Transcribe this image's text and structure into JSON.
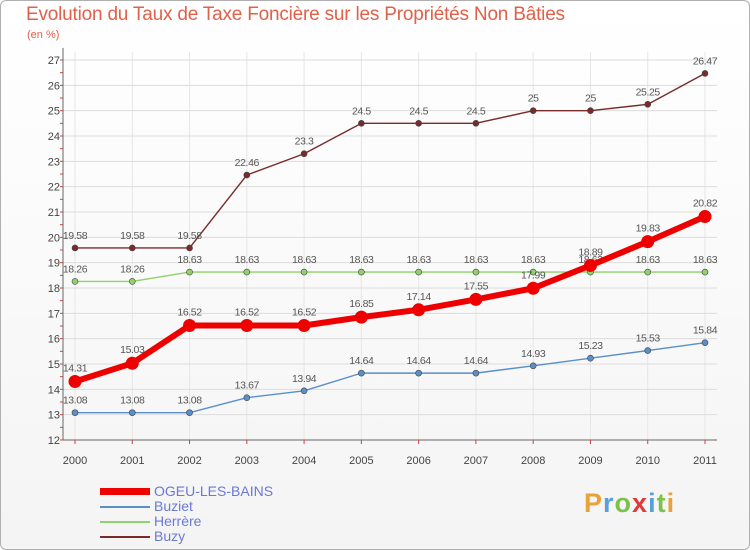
{
  "title": "Evolution du Taux de Taxe Foncière sur les Propriétés Non Bâties",
  "subtitle": "(en %)",
  "logo": {
    "text": "Proxiti",
    "colors": [
      "#e8a23a",
      "#5aa0d8",
      "#7cc24a",
      "#e03a3a",
      "#5aa0d8",
      "#7cc24a",
      "#e8a23a"
    ]
  },
  "chart_data": {
    "type": "line",
    "title": "Evolution du Taux de Taxe Foncière sur les Propriétés Non Bâties",
    "ylabel": "(en %)",
    "xlabel": "",
    "x": [
      2000,
      2001,
      2002,
      2003,
      2004,
      2005,
      2006,
      2007,
      2008,
      2009,
      2010,
      2011
    ],
    "ylim": [
      12,
      27
    ],
    "yticks": [
      12,
      13,
      14,
      15,
      16,
      17,
      18,
      19,
      20,
      21,
      22,
      23,
      24,
      25,
      26,
      27
    ],
    "grid": true,
    "legend_position": "bottom-left",
    "series": [
      {
        "name": "OGEU-LES-BAINS",
        "color": "#ee0000",
        "values": [
          14.31,
          15.03,
          16.52,
          16.52,
          16.52,
          16.85,
          17.14,
          17.55,
          17.99,
          18.89,
          19.83,
          20.82
        ]
      },
      {
        "name": "Buziet",
        "color": "#5a8fc8",
        "values": [
          13.08,
          13.08,
          13.08,
          13.67,
          13.94,
          14.64,
          14.64,
          14.64,
          14.93,
          15.23,
          15.53,
          15.84
        ]
      },
      {
        "name": "Herrère",
        "color": "#8fd16a",
        "values": [
          18.26,
          18.26,
          18.63,
          18.63,
          18.63,
          18.63,
          18.63,
          18.63,
          18.63,
          18.63,
          18.63,
          18.63
        ]
      },
      {
        "name": "Buzy",
        "color": "#7a2a2a",
        "values": [
          19.58,
          19.58,
          19.58,
          22.46,
          23.3,
          24.5,
          24.5,
          24.5,
          25,
          25,
          25.25,
          26.47
        ]
      }
    ]
  }
}
